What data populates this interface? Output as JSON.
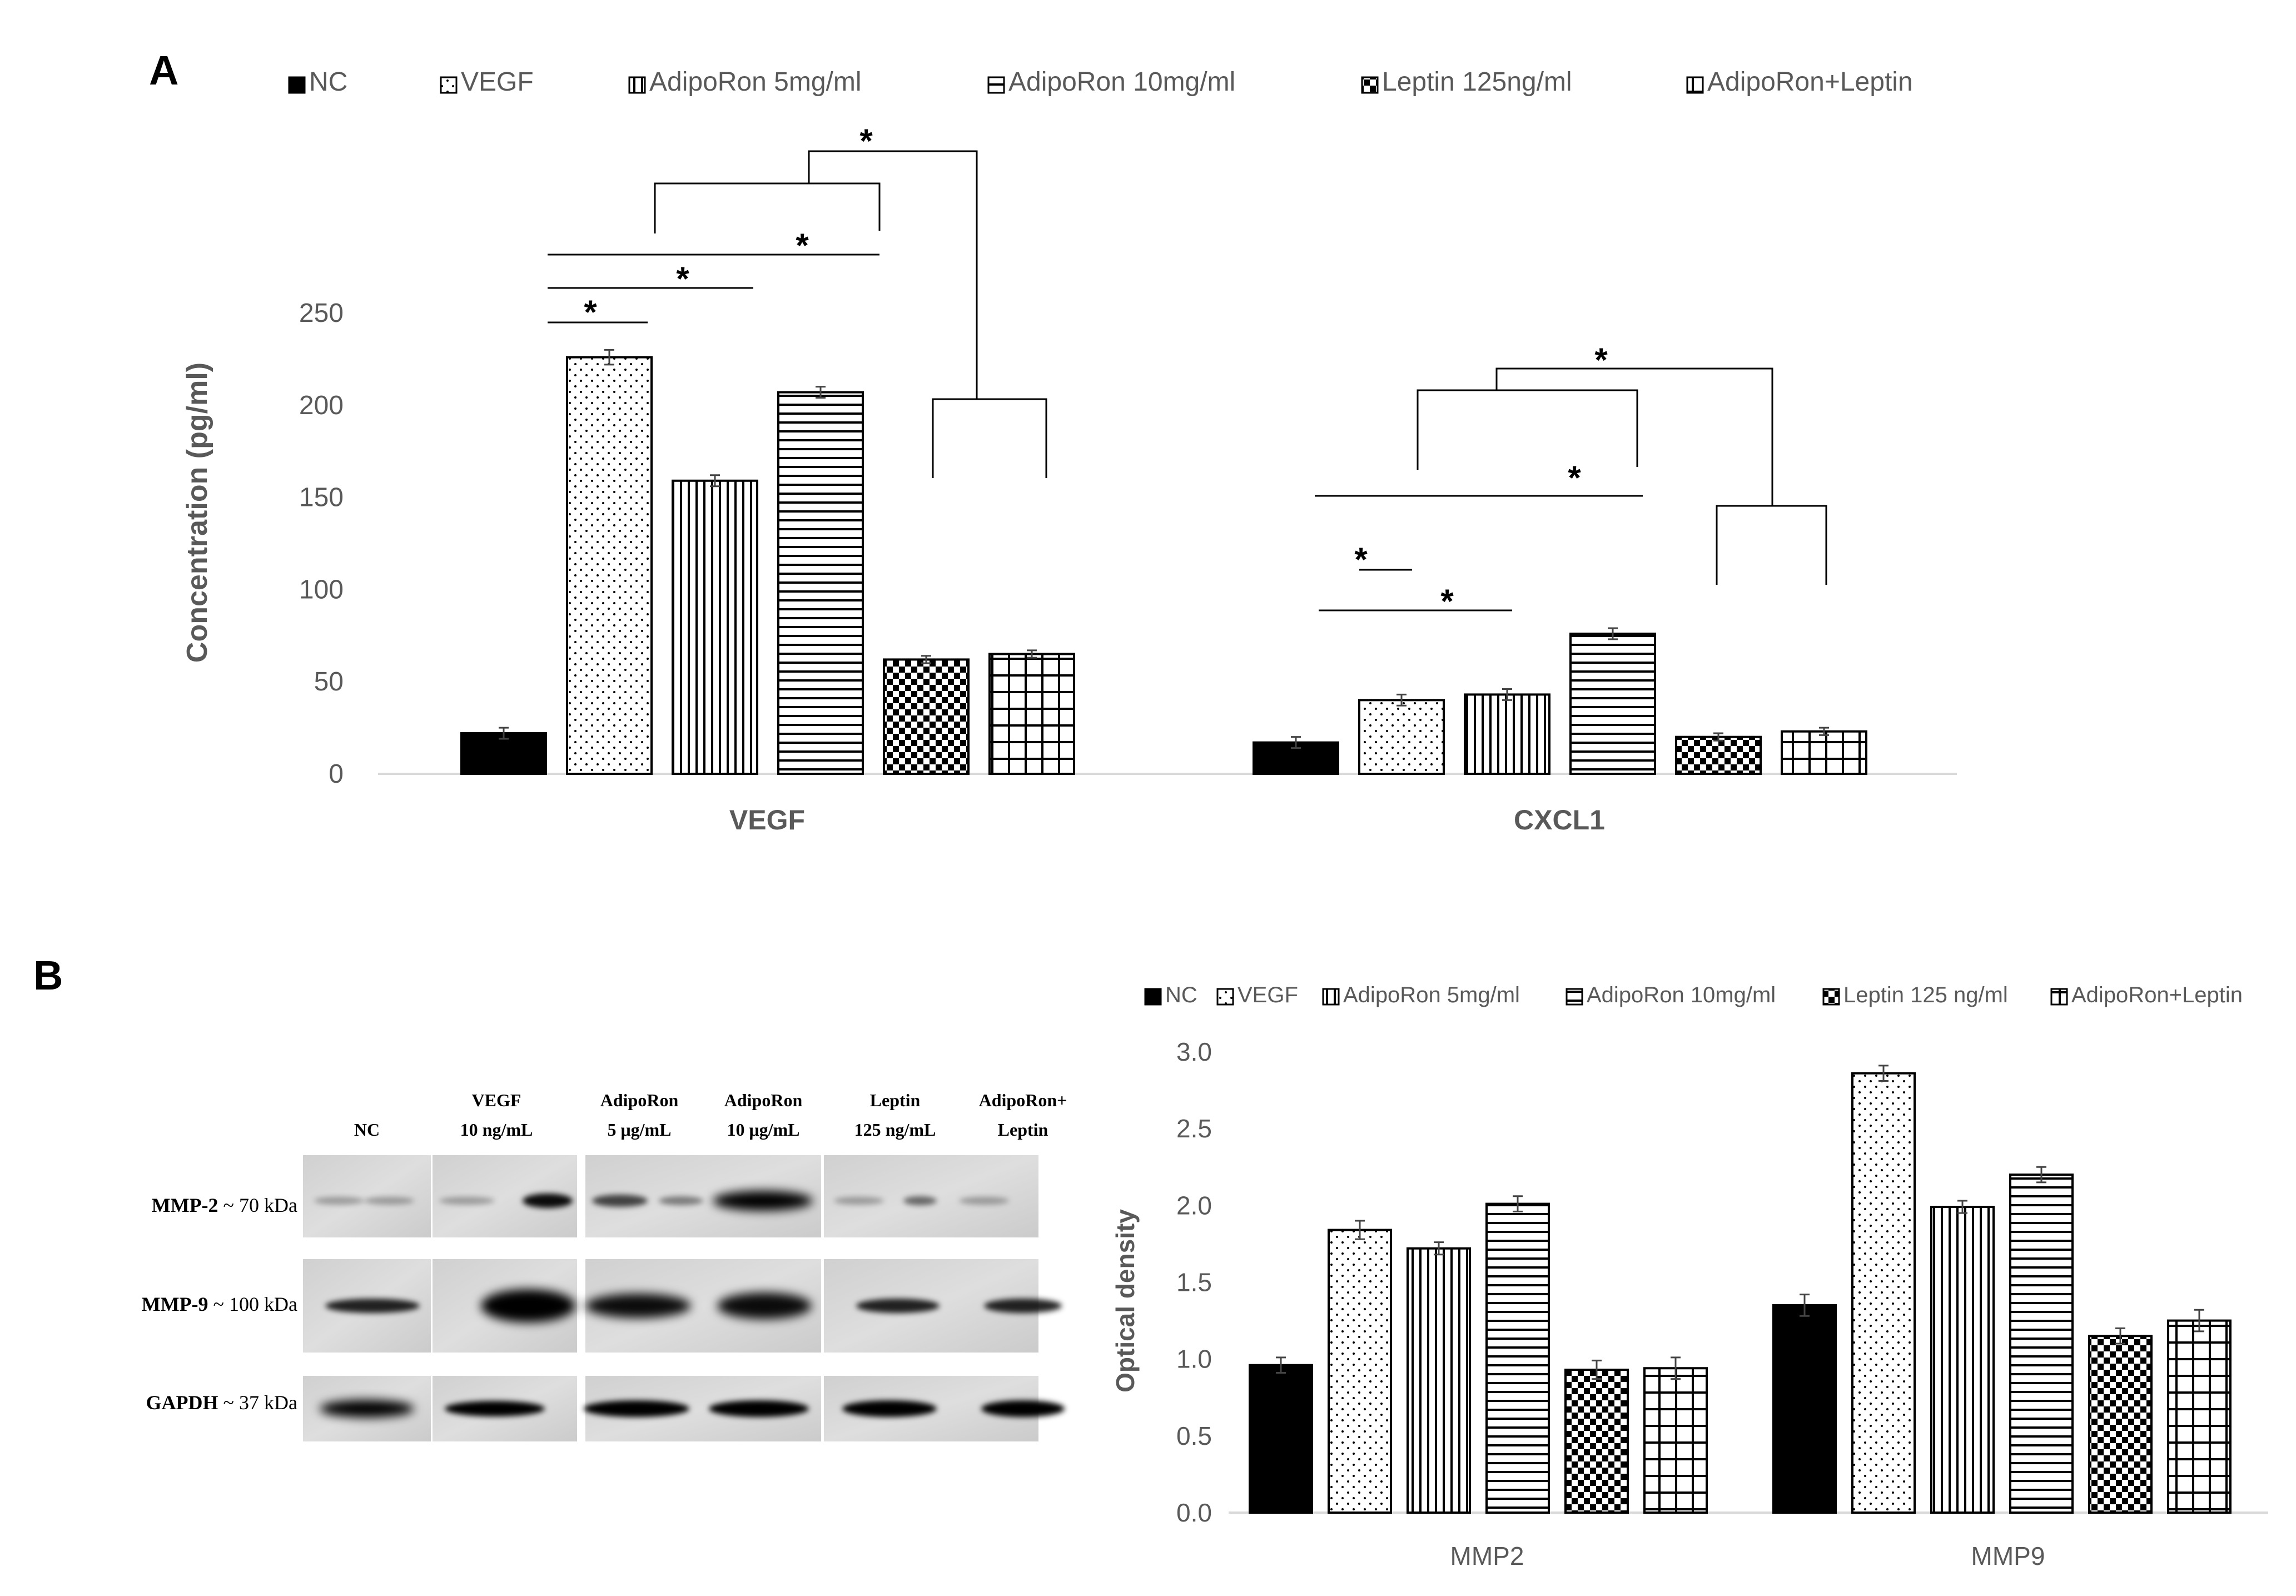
{
  "panels": {
    "a_label": "A",
    "b_label": "B"
  },
  "colors": {
    "text": "#595959",
    "bar_stroke": "#000000",
    "axis": "#d9d9d9",
    "bracket": "#000000"
  },
  "chart_data": [
    {
      "id": "A",
      "type": "bar",
      "categories": [
        "VEGF",
        "CXCL1"
      ],
      "series": [
        {
          "name": "NC",
          "pattern": "solid",
          "values": [
            22,
            17
          ],
          "errors": [
            3,
            3
          ]
        },
        {
          "name": "VEGF",
          "pattern": "dots",
          "values": [
            226,
            40
          ],
          "errors": [
            4,
            3
          ]
        },
        {
          "name": "AdipoRon 5mg/ml",
          "pattern": "vertical",
          "values": [
            159,
            43
          ],
          "errors": [
            3,
            3
          ]
        },
        {
          "name": "AdipoRon 10mg/ml",
          "pattern": "horizontal",
          "values": [
            207,
            76
          ],
          "errors": [
            3,
            3
          ]
        },
        {
          "name": "Leptin 125ng/ml",
          "pattern": "checker",
          "values": [
            62,
            20
          ],
          "errors": [
            2,
            2
          ]
        },
        {
          "name": "AdipoRon+Leptin",
          "pattern": "grid",
          "values": [
            65,
            23
          ],
          "errors": [
            2,
            2
          ]
        }
      ],
      "ylabel": "Concentration (pg/ml)",
      "xlabel": "",
      "ylim": [
        0,
        250
      ],
      "yticks": [
        "0",
        "50",
        "100",
        "150",
        "200",
        "250"
      ],
      "grid": false,
      "legend": "top",
      "significance_mark": "*"
    },
    {
      "id": "B",
      "type": "bar",
      "categories": [
        "MMP2",
        "MMP9"
      ],
      "series": [
        {
          "name": "NC",
          "pattern": "solid",
          "values": [
            0.96,
            1.35
          ],
          "errors": [
            0.05,
            0.07
          ]
        },
        {
          "name": "VEGF",
          "pattern": "dots",
          "values": [
            1.84,
            2.86
          ],
          "errors": [
            0.06,
            0.05
          ]
        },
        {
          "name": "AdipoRon 5mg/ml",
          "pattern": "vertical",
          "values": [
            1.72,
            1.99
          ],
          "errors": [
            0.04,
            0.04
          ]
        },
        {
          "name": "AdipoRon 10mg/ml",
          "pattern": "horizontal",
          "values": [
            2.01,
            2.2
          ],
          "errors": [
            0.05,
            0.05
          ]
        },
        {
          "name": "Leptin 125 ng/ml",
          "pattern": "checker",
          "values": [
            0.93,
            1.15
          ],
          "errors": [
            0.06,
            0.05
          ]
        },
        {
          "name": "AdipoRon+Leptin",
          "pattern": "grid",
          "values": [
            0.94,
            1.25
          ],
          "errors": [
            0.07,
            0.07
          ]
        }
      ],
      "ylabel": "Optical density",
      "xlabel": "",
      "ylim": [
        0,
        3.0
      ],
      "yticks": [
        "0.0",
        "0.5",
        "1.0",
        "1.5",
        "2.0",
        "2.5",
        "3.0"
      ],
      "grid": false,
      "legend": "top"
    }
  ],
  "blot": {
    "lanes": [
      {
        "line1": "NC",
        "line2": ""
      },
      {
        "line1": "VEGF",
        "line2": "10 ng/mL"
      },
      {
        "line1": "AdipoRon",
        "line2": "5 μg/mL"
      },
      {
        "line1": "AdipoRon",
        "line2": "10 μg/mL"
      },
      {
        "line1": "Leptin",
        "line2": "125 ng/mL"
      },
      {
        "line1": "AdipoRon+",
        "line2": "Leptin"
      }
    ],
    "rows": [
      {
        "protein": "MMP-2",
        "size": " ~ 70 kDa"
      },
      {
        "protein": "MMP-9",
        "size": " ~ 100 kDa"
      },
      {
        "protein": "GAPDH",
        "size": "  ~ 37 kDa"
      }
    ]
  }
}
